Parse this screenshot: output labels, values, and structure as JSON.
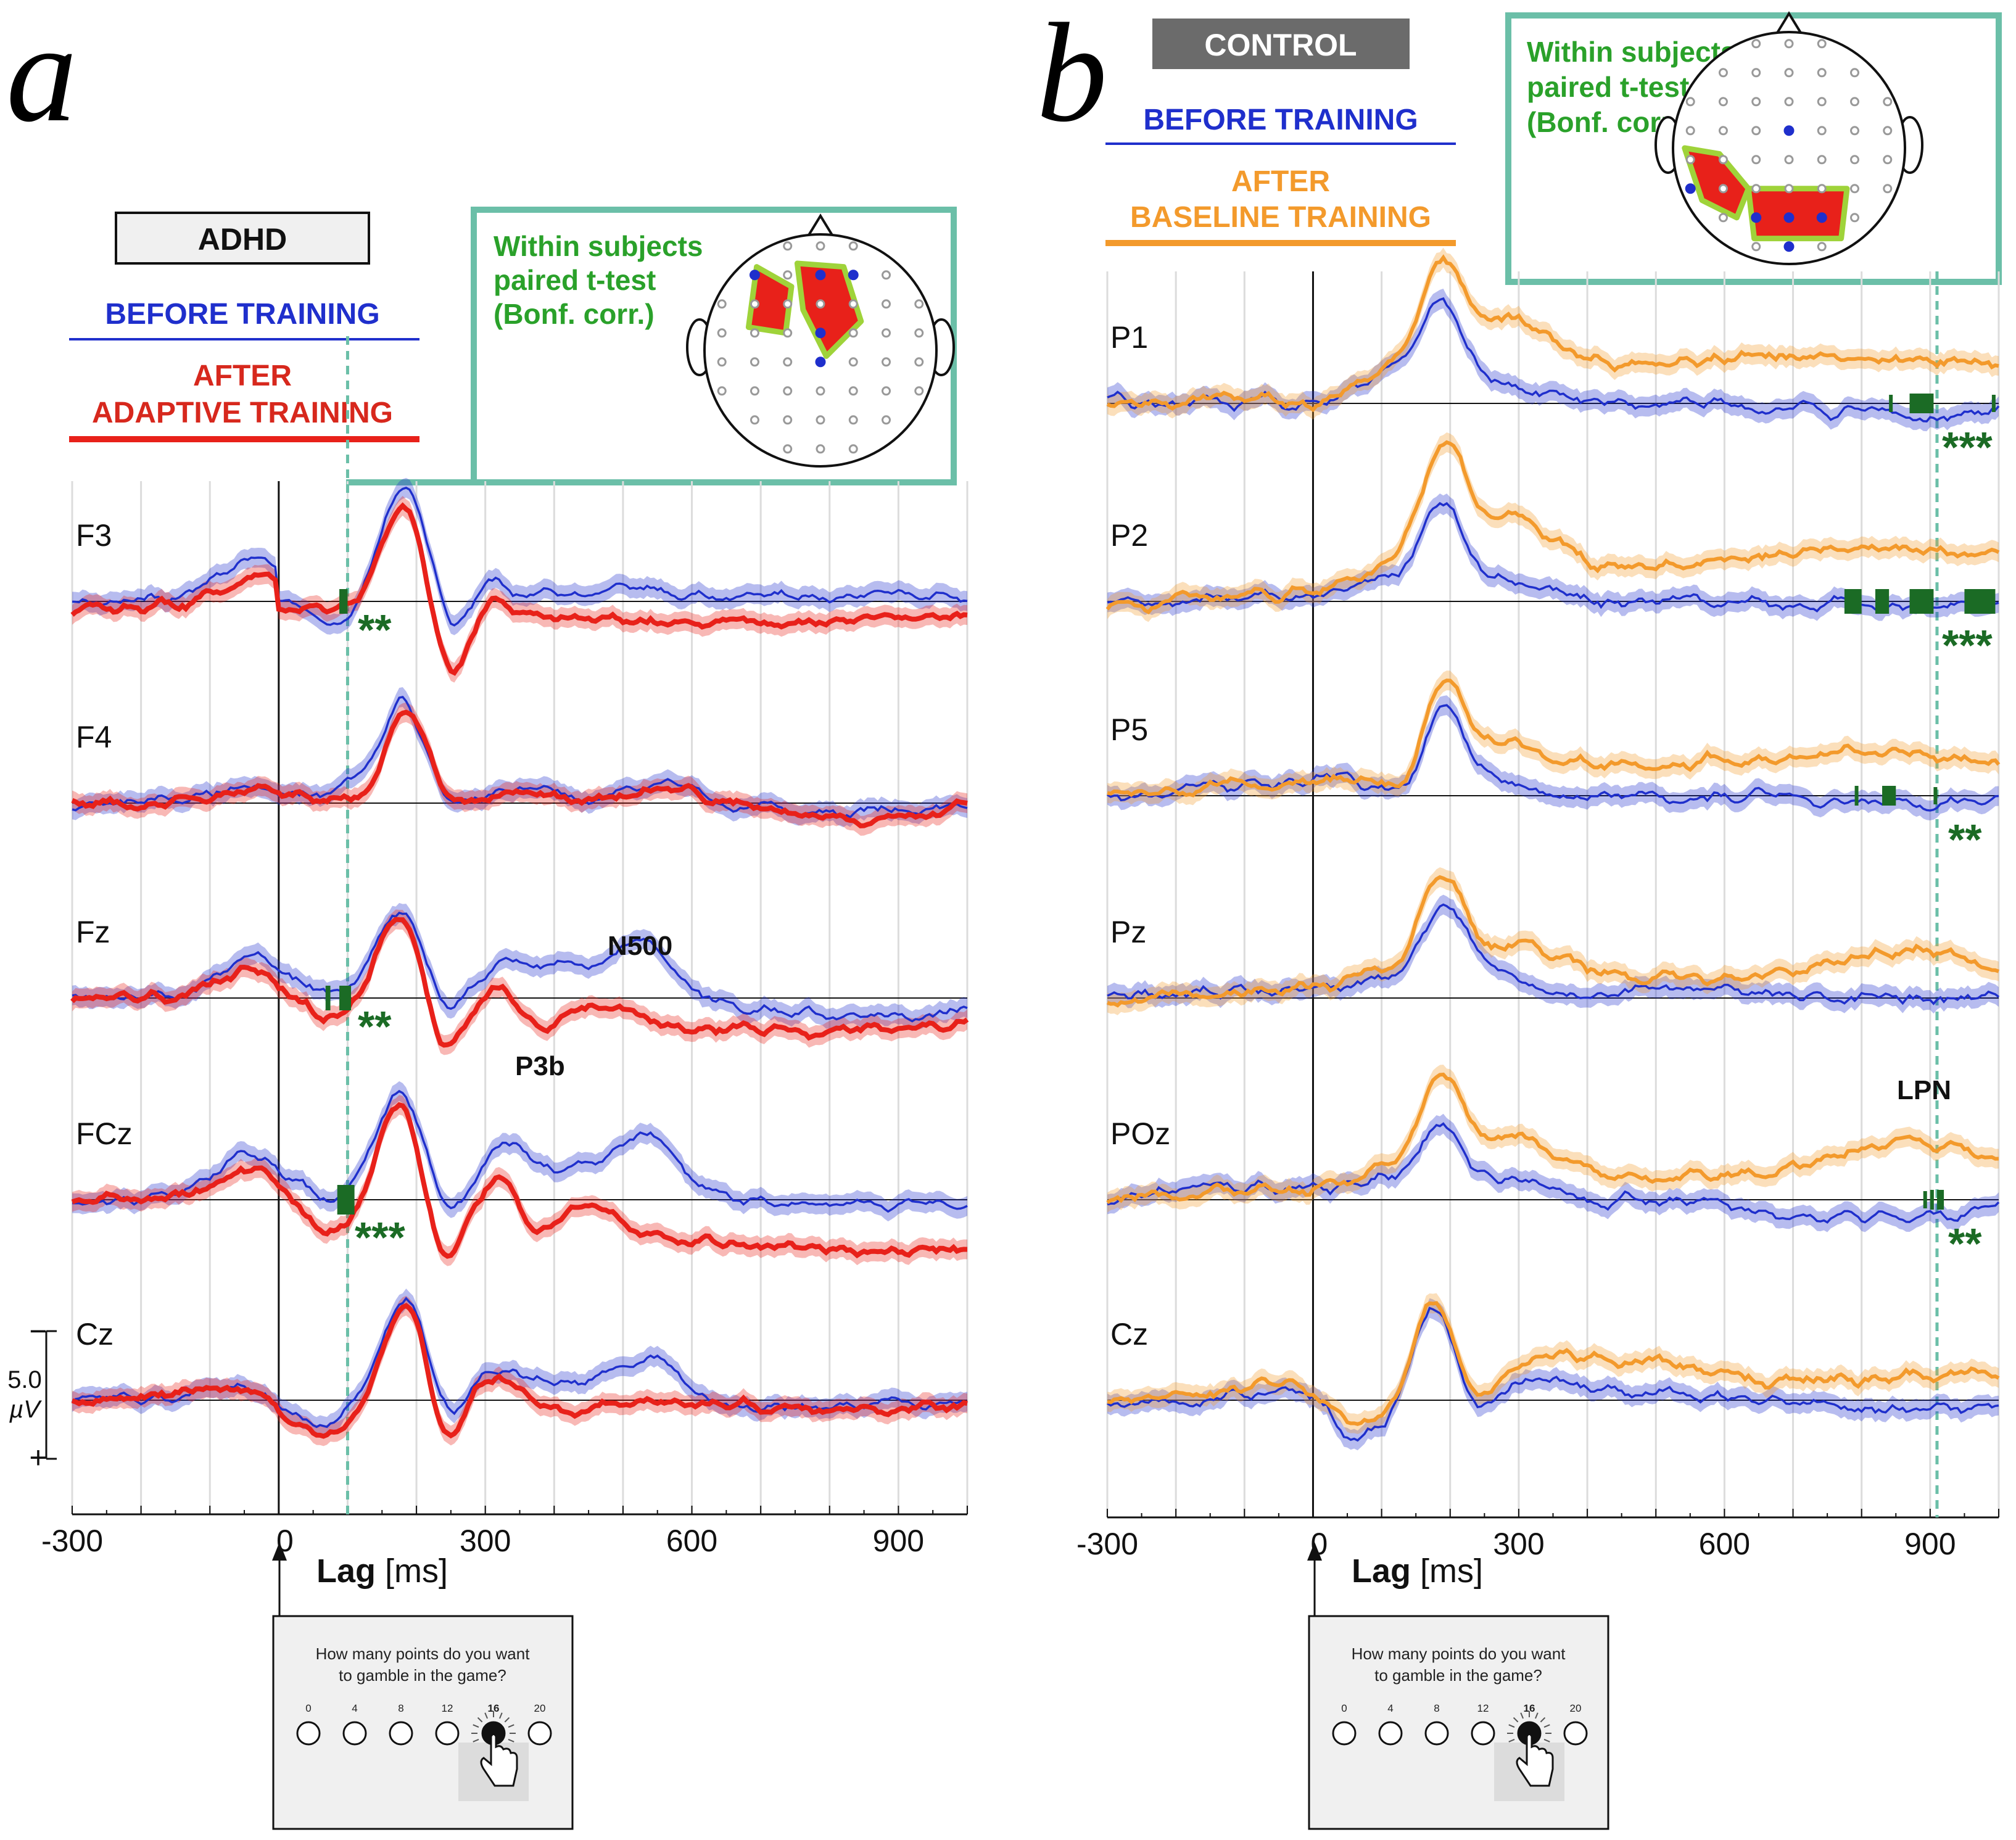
{
  "colors": {
    "before": "#1f2fcc",
    "after_adaptive": "#e8211a",
    "after_baseline": "#f39a2c",
    "significance": "#1b6b25",
    "teal": "#6bbfa8"
  },
  "chart_data": [
    {
      "type": "line",
      "panel": "a",
      "group_label": "ADHD",
      "legend": [
        "BEFORE TRAINING",
        "AFTER",
        "ADAPTIVE TRAINING"
      ],
      "xlabel": "Lag [ms]",
      "x_ticks": [
        "-300",
        "0",
        "300",
        "600",
        "900"
      ],
      "xlim": [
        -300,
        1000
      ],
      "ylabel": "5.0 µV",
      "scale_bar_uv": 5.0,
      "scale_bar_labels": [
        "5.0",
        "µV",
        "−",
        "+"
      ],
      "stimulus_onset_ms": 0,
      "marker_ms": 100,
      "channels": [
        {
          "name": "F3",
          "stars": "**"
        },
        {
          "name": "F4",
          "stars": ""
        },
        {
          "name": "Fz",
          "stars": "**",
          "annotations": [
            "N500",
            "P3b"
          ]
        },
        {
          "name": "FCz",
          "stars": "***"
        },
        {
          "name": "Cz",
          "stars": ""
        }
      ],
      "series": [
        {
          "name": "BEFORE TRAINING",
          "color": "#1f2fcc"
        },
        {
          "name": "AFTER ADAPTIVE TRAINING",
          "color": "#e8211a"
        }
      ],
      "topomap_note": [
        "Within subjects",
        "paired t-test",
        "(Bonf. corr.)"
      ]
    },
    {
      "type": "line",
      "panel": "b",
      "group_label": "CONTROL",
      "legend": [
        "BEFORE TRAINING",
        "AFTER",
        "BASELINE TRAINING"
      ],
      "xlabel": "Lag [ms]",
      "x_ticks": [
        "-300",
        "0",
        "300",
        "600",
        "900"
      ],
      "xlim": [
        -300,
        1000
      ],
      "stimulus_onset_ms": 0,
      "marker_ms": 910,
      "channels": [
        {
          "name": "P1",
          "stars": "***"
        },
        {
          "name": "P2",
          "stars": "***"
        },
        {
          "name": "P5",
          "stars": "**"
        },
        {
          "name": "Pz",
          "stars": ""
        },
        {
          "name": "POz",
          "stars": "**",
          "annotations": [
            "LPN"
          ]
        },
        {
          "name": "Cz",
          "stars": ""
        }
      ],
      "series": [
        {
          "name": "BEFORE TRAINING",
          "color": "#1f2fcc"
        },
        {
          "name": "AFTER BASELINE TRAINING",
          "color": "#f39a2c"
        }
      ],
      "topomap_note": [
        "Within subjects",
        "paired t-test",
        "(Bonf. corr.)"
      ]
    }
  ],
  "panel_a": {
    "letter": "a",
    "group": "ADHD",
    "legend_before": "BEFORE TRAINING",
    "legend_after_1": "AFTER",
    "legend_after_2": "ADAPTIVE TRAINING",
    "note_1": "Within subjects",
    "note_2": "paired t-test",
    "note_3": "(Bonf. corr.)",
    "xlabel_bold": "Lag",
    "xlabel_unit": " [ms]",
    "ticks": [
      "-300",
      "0",
      "300",
      "600",
      "900"
    ],
    "channels": [
      "F3",
      "F4",
      "Fz",
      "FCz",
      "Cz"
    ],
    "stars": [
      "**",
      "",
      "**",
      "***",
      ""
    ],
    "n500": "N500",
    "p3b": "P3b",
    "scale_value": "5.0",
    "scale_unit": "µV",
    "scale_minus": "−",
    "scale_plus": "+"
  },
  "panel_b": {
    "letter": "b",
    "group": "CONTROL",
    "legend_before": "BEFORE TRAINING",
    "legend_after_1": "AFTER",
    "legend_after_2": "BASELINE TRAINING",
    "note_1": "Within subjects",
    "note_2": "paired t-test",
    "note_3": "(Bonf. corr.)",
    "xlabel_bold": "Lag",
    "xlabel_unit": " [ms]",
    "ticks": [
      "-300",
      "0",
      "300",
      "600",
      "900"
    ],
    "channels": [
      "P1",
      "P2",
      "P5",
      "Pz",
      "POz",
      "Cz"
    ],
    "stars": [
      "***",
      "***",
      "**",
      "",
      "**",
      ""
    ],
    "lpn": "LPN"
  },
  "stimulus": {
    "question_line1": "How many points do you want",
    "question_line2": "to gamble in the game?",
    "options": [
      "0",
      "4",
      "8",
      "12",
      "16",
      "20"
    ],
    "selected": "16"
  }
}
